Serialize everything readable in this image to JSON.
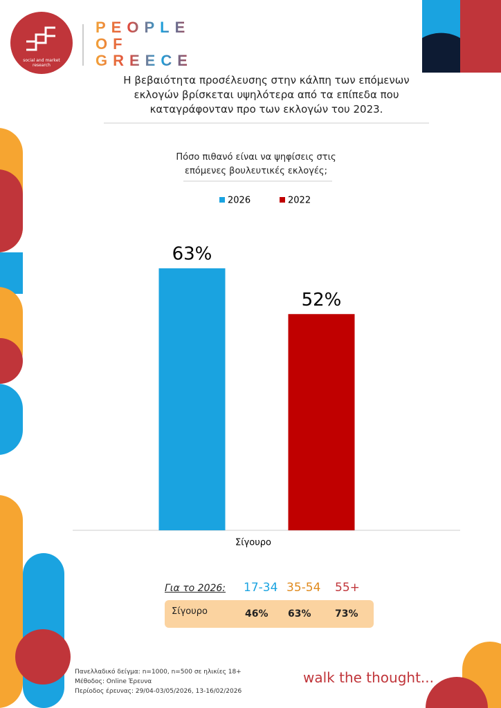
{
  "logo": {
    "tagline": "social and market research",
    "brand": [
      "PEOPLE",
      "OF",
      "GREECE"
    ]
  },
  "headline": "Η βεβαιότητα προσέλευσης στην κάλπη των επόμενων εκλογών βρίσκεται υψηλότερα από τα επίπεδα που καταγράφονταν προ των εκλογών του 2023.",
  "chart_data": {
    "type": "bar",
    "title": "Πόσο πιθανό είναι να ψηφίσεις στις επόμενες βουλευτικές εκλογές;",
    "categories": [
      "Σίγουρο"
    ],
    "series": [
      {
        "name": "2026",
        "color": "#1aa3e0",
        "values": [
          63
        ],
        "value_labels": [
          "63%"
        ]
      },
      {
        "name": "2022",
        "color": "#c00000",
        "values": [
          52
        ],
        "value_labels": [
          "52%"
        ]
      }
    ],
    "ylim": [
      0,
      70
    ],
    "legend": "top"
  },
  "table": {
    "title": "Για το 2026:",
    "headers": [
      "17-34",
      "35-54",
      "55+"
    ],
    "rows": [
      [
        "Σίγουρο",
        "46%",
        "63%",
        "73%"
      ]
    ]
  },
  "footer": {
    "notes": [
      "Πανελλαδικό δείγμα: n=1000, n=500 σε ηλικίες 18+",
      "Μέθοδος: Online Έρευνα",
      "Περίοδος έρευνας: 29/04-03/05/2026, 13-16/02/2026"
    ],
    "slogan": "walk the thought..."
  }
}
